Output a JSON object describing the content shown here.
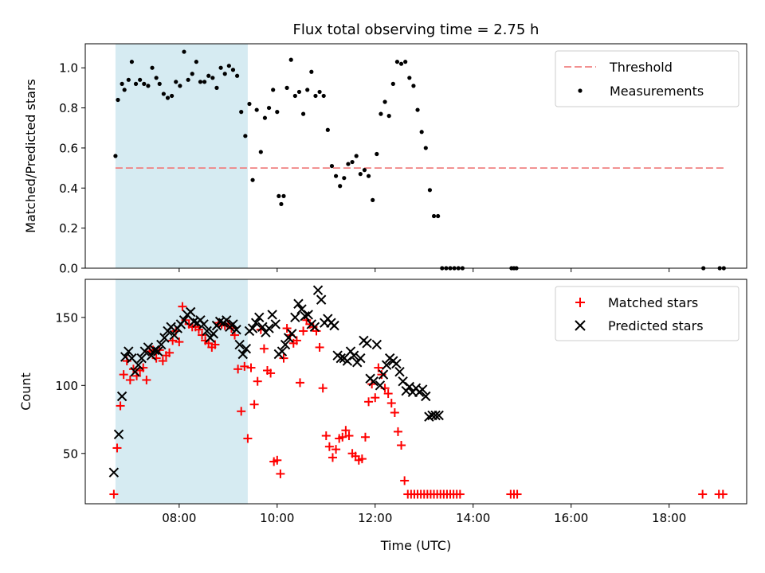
{
  "chart_data": [
    {
      "type": "scatter",
      "title": "Flux total observing time = 2.75 h",
      "xlabel": "",
      "ylabel": "Matched/Predicted stars",
      "ylim": [
        0,
        1.12
      ],
      "xlim": [
        "06:05",
        "19:35"
      ],
      "yticks": [
        "0.0",
        "0.2",
        "0.4",
        "0.6",
        "0.8",
        "1.0"
      ],
      "highlight": {
        "x_start": "06:42",
        "x_end": "09:24",
        "color": "#add8e6"
      },
      "legend_position": "top-right",
      "legend": [
        "Threshold",
        "Measurements"
      ],
      "threshold": {
        "name": "Threshold",
        "y": 0.5,
        "x_start": "06:42",
        "x_end": "19:08",
        "color": "#f08080"
      },
      "series": [
        {
          "name": "Measurements",
          "color": "#000000",
          "marker": "dot",
          "x": [
            "06:42",
            "06:45",
            "06:50",
            "06:53",
            "06:58",
            "07:02",
            "07:07",
            "07:12",
            "07:17",
            "07:22",
            "07:27",
            "07:32",
            "07:36",
            "07:41",
            "07:46",
            "07:51",
            "07:56",
            "08:01",
            "08:06",
            "08:11",
            "08:16",
            "08:21",
            "08:26",
            "08:31",
            "08:36",
            "08:41",
            "08:46",
            "08:51",
            "08:56",
            "09:01",
            "09:06",
            "09:11",
            "09:16",
            "09:21",
            "09:26",
            "09:30",
            "09:35",
            "09:40",
            "09:45",
            "09:50",
            "09:55",
            "10:00",
            "10:02",
            "10:05",
            "10:08",
            "10:12",
            "10:17",
            "10:22",
            "10:27",
            "10:32",
            "10:37",
            "10:42",
            "10:47",
            "10:52",
            "10:57",
            "11:02",
            "11:07",
            "11:12",
            "11:17",
            "11:22",
            "11:27",
            "11:32",
            "11:37",
            "11:42",
            "11:47",
            "11:52",
            "11:57",
            "12:02",
            "12:07",
            "12:12",
            "12:17",
            "12:22",
            "12:27",
            "12:32",
            "12:37",
            "12:42",
            "12:47",
            "12:52",
            "12:57",
            "13:02",
            "13:07",
            "13:12",
            "13:17",
            "13:22",
            "13:27",
            "13:32",
            "13:37",
            "13:42",
            "13:47",
            "14:47",
            "14:50",
            "14:53",
            "18:42",
            "19:02",
            "19:07"
          ],
          "y": [
            0.56,
            0.84,
            0.92,
            0.89,
            0.94,
            1.03,
            0.92,
            0.94,
            0.92,
            0.91,
            1.0,
            0.95,
            0.92,
            0.87,
            0.85,
            0.86,
            0.93,
            0.91,
            1.08,
            0.94,
            0.97,
            1.03,
            0.93,
            0.93,
            0.96,
            0.95,
            0.9,
            1.0,
            0.97,
            1.01,
            0.99,
            0.96,
            0.78,
            0.66,
            0.82,
            0.44,
            0.79,
            0.58,
            0.75,
            0.8,
            0.89,
            0.78,
            0.36,
            0.32,
            0.36,
            0.9,
            1.04,
            0.86,
            0.88,
            0.77,
            0.89,
            0.98,
            0.86,
            0.88,
            0.86,
            0.69,
            0.51,
            0.46,
            0.41,
            0.45,
            0.52,
            0.53,
            0.56,
            0.47,
            0.49,
            0.46,
            0.34,
            0.57,
            0.77,
            0.83,
            0.76,
            0.92,
            1.03,
            1.02,
            1.03,
            0.95,
            0.91,
            0.79,
            0.68,
            0.6,
            0.39,
            0.26,
            0.26,
            0,
            0,
            0,
            0,
            0,
            0,
            0,
            0,
            0,
            0,
            0,
            0
          ]
        }
      ]
    },
    {
      "type": "scatter",
      "title": "",
      "xlabel": "Time (UTC)",
      "ylabel": "Count",
      "ylim": [
        13,
        178
      ],
      "xlim": [
        "06:05",
        "19:35"
      ],
      "yticks": [
        "50",
        "100",
        "150"
      ],
      "xticks": [
        "08:00",
        "10:00",
        "12:00",
        "14:00",
        "16:00",
        "18:00"
      ],
      "highlight": {
        "x_start": "06:42",
        "x_end": "09:24",
        "color": "#add8e6"
      },
      "legend_position": "top-right",
      "legend": [
        "Matched stars",
        "Predicted stars"
      ],
      "series": [
        {
          "name": "Matched stars",
          "color": "#ff0000",
          "marker": "plus",
          "x": [
            "06:40",
            "06:44",
            "06:48",
            "06:52",
            "06:56",
            "07:00",
            "07:04",
            "07:08",
            "07:12",
            "07:16",
            "07:20",
            "07:24",
            "07:28",
            "07:32",
            "07:36",
            "07:40",
            "07:44",
            "07:48",
            "07:52",
            "07:56",
            "08:00",
            "08:04",
            "08:08",
            "08:12",
            "08:16",
            "08:20",
            "08:24",
            "08:28",
            "08:32",
            "08:36",
            "08:40",
            "08:44",
            "08:48",
            "08:52",
            "08:56",
            "09:00",
            "09:04",
            "09:08",
            "09:12",
            "09:16",
            "09:20",
            "09:24",
            "09:28",
            "09:32",
            "09:36",
            "09:40",
            "09:44",
            "09:48",
            "09:52",
            "09:56",
            "10:00",
            "10:04",
            "10:08",
            "10:12",
            "10:16",
            "10:20",
            "10:24",
            "10:28",
            "10:32",
            "10:36",
            "10:40",
            "10:44",
            "10:48",
            "10:52",
            "10:56",
            "11:00",
            "11:04",
            "11:08",
            "11:12",
            "11:16",
            "11:20",
            "11:24",
            "11:28",
            "11:32",
            "11:36",
            "11:40",
            "11:44",
            "11:48",
            "11:52",
            "11:56",
            "12:00",
            "12:04",
            "12:08",
            "12:12",
            "12:16",
            "12:20",
            "12:24",
            "12:28",
            "12:32",
            "12:36",
            "12:40",
            "12:44",
            "12:48",
            "12:52",
            "12:56",
            "13:00",
            "13:04",
            "13:08",
            "13:12",
            "13:16",
            "13:20",
            "13:24",
            "13:28",
            "13:32",
            "13:36",
            "13:40",
            "13:44",
            "14:46",
            "14:50",
            "14:54",
            "18:41",
            "19:01",
            "19:06"
          ],
          "y": [
            20,
            54,
            85,
            108,
            118,
            104,
            112,
            107,
            111,
            113,
            104,
            125,
            126,
            120,
            126,
            118,
            122,
            124,
            133,
            140,
            132,
            158,
            148,
            145,
            143,
            143,
            141,
            137,
            133,
            131,
            128,
            130,
            146,
            145,
            144,
            145,
            142,
            137,
            112,
            81,
            114,
            61,
            113,
            86,
            103,
            141,
            127,
            111,
            109,
            44,
            45,
            35,
            120,
            142,
            137,
            131,
            133,
            102,
            140,
            148,
            145,
            143,
            140,
            128,
            98,
            63,
            55,
            47,
            53,
            61,
            62,
            67,
            63,
            50,
            48,
            45,
            46,
            62,
            88,
            101,
            91,
            113,
            108,
            98,
            94,
            87,
            80,
            66,
            56,
            30,
            20,
            20,
            20,
            20,
            20,
            20,
            20,
            20,
            20,
            20,
            20,
            20,
            20,
            20,
            20,
            20,
            20,
            20,
            20,
            20,
            20,
            20,
            20
          ]
        },
        {
          "name": "Predicted stars",
          "color": "#000000",
          "marker": "x",
          "x": [
            "06:40",
            "06:46",
            "06:50",
            "06:54",
            "06:58",
            "07:02",
            "07:06",
            "07:10",
            "07:14",
            "07:18",
            "07:22",
            "07:26",
            "07:30",
            "07:34",
            "07:38",
            "07:42",
            "07:46",
            "07:50",
            "07:54",
            "07:58",
            "08:02",
            "08:06",
            "08:10",
            "08:14",
            "08:18",
            "08:22",
            "08:26",
            "08:30",
            "08:34",
            "08:38",
            "08:42",
            "08:46",
            "08:50",
            "08:54",
            "08:58",
            "09:02",
            "09:06",
            "09:10",
            "09:14",
            "09:18",
            "09:22",
            "09:26",
            "09:30",
            "09:34",
            "09:38",
            "09:42",
            "09:46",
            "09:50",
            "09:54",
            "09:58",
            "10:02",
            "10:06",
            "10:10",
            "10:14",
            "10:18",
            "10:22",
            "10:26",
            "10:30",
            "10:34",
            "10:38",
            "10:42",
            "10:46",
            "10:50",
            "10:54",
            "10:58",
            "11:02",
            "11:06",
            "11:10",
            "11:14",
            "11:18",
            "11:22",
            "11:26",
            "11:30",
            "11:34",
            "11:38",
            "11:42",
            "11:46",
            "11:50",
            "11:54",
            "11:58",
            "12:02",
            "12:06",
            "12:10",
            "12:14",
            "12:18",
            "12:22",
            "12:26",
            "12:30",
            "12:34",
            "12:38",
            "12:42",
            "12:46",
            "12:50",
            "12:54",
            "12:58",
            "13:02",
            "13:06",
            "13:10",
            "13:14",
            "13:18"
          ],
          "y": [
            36,
            64,
            92,
            121,
            125,
            120,
            110,
            115,
            120,
            125,
            128,
            122,
            126,
            125,
            130,
            135,
            140,
            143,
            137,
            142,
            145,
            148,
            152,
            154,
            147,
            146,
            148,
            145,
            140,
            135,
            138,
            144,
            147,
            146,
            148,
            143,
            145,
            141,
            130,
            123,
            127,
            140,
            142,
            146,
            150,
            143,
            139,
            142,
            152,
            145,
            123,
            125,
            130,
            135,
            138,
            150,
            160,
            156,
            151,
            152,
            145,
            143,
            170,
            163,
            146,
            149,
            146,
            144,
            122,
            120,
            120,
            118,
            125,
            122,
            117,
            120,
            133,
            131,
            105,
            103,
            130,
            100,
            108,
            115,
            120,
            118,
            116,
            110,
            103,
            96,
            99,
            95,
            98,
            95,
            97,
            92,
            77,
            78,
            78,
            78
          ]
        }
      ]
    }
  ]
}
